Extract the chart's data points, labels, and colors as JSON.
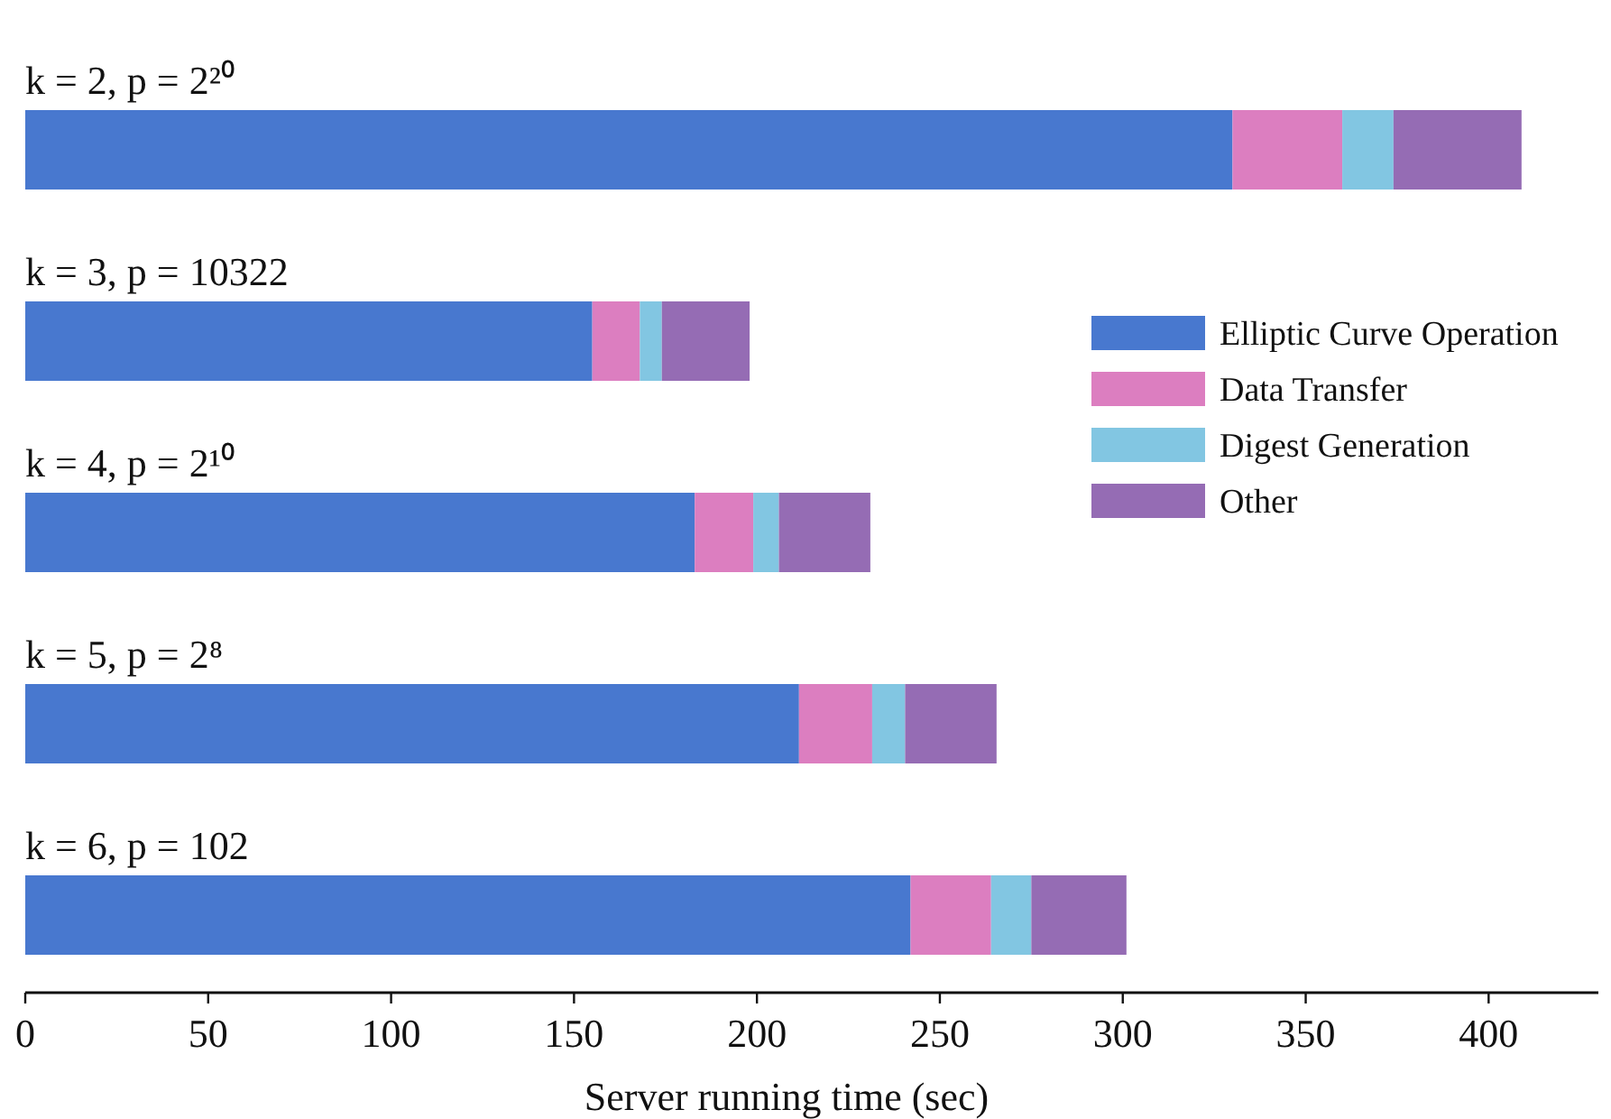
{
  "chart_data": {
    "type": "bar",
    "orientation": "horizontal",
    "stacked": true,
    "xlabel": "Server running time (sec)",
    "categories": [
      "k = 2, p = 2²⁰",
      "k = 3, p = 10322",
      "k = 4, p = 2¹⁰",
      "k = 5, p = 2⁸",
      "k = 6, p = 102"
    ],
    "series": [
      {
        "name": "Elliptic Curve Operation",
        "color": "#4878cf",
        "values": [
          330,
          155,
          183,
          211.5,
          242
        ]
      },
      {
        "name": "Data Transfer",
        "color": "#dc7ec0",
        "values": [
          30,
          13,
          16,
          20,
          22
        ]
      },
      {
        "name": "Digest Generation",
        "color": "#82c6e2",
        "values": [
          14,
          6,
          7,
          9,
          11
        ]
      },
      {
        "name": "Other",
        "color": "#956cb4",
        "values": [
          35,
          24,
          25,
          25,
          26
        ]
      }
    ],
    "xlim": [
      0,
      430
    ],
    "xticks": [
      0,
      50,
      100,
      150,
      200,
      250,
      300,
      350,
      400
    ],
    "grid": false,
    "legend": "right"
  }
}
